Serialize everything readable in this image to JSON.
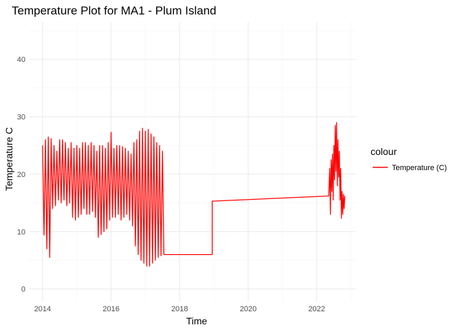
{
  "chart_data": {
    "type": "line",
    "title": "Temperature Plot for MA1 - Plum Island",
    "xlabel": "Time",
    "ylabel": "Temperature C",
    "xlim": [
      2013.6,
      2023.15
    ],
    "ylim": [
      -2.2,
      46.5
    ],
    "x_ticks": [
      2014,
      2016,
      2018,
      2020,
      2022
    ],
    "x_tick_labels": [
      "2014",
      "2016",
      "2018",
      "2020",
      "2022"
    ],
    "y_ticks": [
      0,
      10,
      20,
      30,
      40
    ],
    "y_tick_labels": [
      "0",
      "10",
      "20",
      "30",
      "40"
    ],
    "grid": true,
    "legend": {
      "title": "colour",
      "position": "right",
      "entries": [
        {
          "label": "Temperature (C)",
          "color": "#FF0000"
        }
      ]
    },
    "series": [
      {
        "name": "Temperature (C)",
        "color": "#FF0000",
        "cycle_period_years": 0.0833,
        "segments": [
          {
            "start": 2014.0,
            "description": "monthly oscillation envelope (peak, trough) per cycle",
            "cycles": [
              [
                25.0,
                9.4
              ],
              [
                26.0,
                7.0
              ],
              [
                26.5,
                5.5
              ],
              [
                26.2,
                14.0
              ],
              [
                25.0,
                14.5
              ],
              [
                24.0,
                15.5
              ],
              [
                26.0,
                15.0
              ],
              [
                26.0,
                15.5
              ],
              [
                25.5,
                14.5
              ],
              [
                24.5,
                15.0
              ],
              [
                25.5,
                12.5
              ],
              [
                24.5,
                12.0
              ],
              [
                25.0,
                12.5
              ],
              [
                24.5,
                13.0
              ],
              [
                25.5,
                14.0
              ],
              [
                25.5,
                13.0
              ],
              [
                25.0,
                13.0
              ],
              [
                25.5,
                13.5
              ],
              [
                25.0,
                12.5
              ],
              [
                24.0,
                9.0
              ],
              [
                25.0,
                9.5
              ],
              [
                25.0,
                10.0
              ],
              [
                24.5,
                10.5
              ],
              [
                25.5,
                12.0
              ],
              [
                27.3,
                12.5
              ],
              [
                24.5,
                12.5
              ],
              [
                25.0,
                13.0
              ],
              [
                25.0,
                12.0
              ],
              [
                24.8,
                12.5
              ],
              [
                24.5,
                13.0
              ],
              [
                24.0,
                12.0
              ],
              [
                23.5,
                11.0
              ],
              [
                25.5,
                7.5
              ],
              [
                26.0,
                6.0
              ],
              [
                27.5,
                5.0
              ],
              [
                28.0,
                4.5
              ],
              [
                27.5,
                4.0
              ],
              [
                27.8,
                4.0
              ],
              [
                27.0,
                4.5
              ],
              [
                26.5,
                5.0
              ],
              [
                25.5,
                5.5
              ],
              [
                25.0,
                5.8
              ],
              [
                24.0,
                6.0
              ]
            ],
            "end": [
              2018.95,
              6.0
            ]
          },
          {
            "x": [
              2018.95,
              2022.35
            ],
            "y": [
              15.3,
              16.2
            ]
          },
          {
            "x": [
              2022.35,
              2022.38,
              2022.4,
              2022.42,
              2022.44,
              2022.46,
              2022.48,
              2022.5,
              2022.52,
              2022.54,
              2022.56,
              2022.58,
              2022.6,
              2022.62,
              2022.64,
              2022.66,
              2022.68,
              2022.7,
              2022.72,
              2022.74,
              2022.76,
              2022.78,
              2022.8,
              2022.82
            ],
            "y": [
              16.2,
              21.0,
              13.0,
              22.5,
              17.0,
              23.5,
              15.5,
              25.0,
              19.0,
              28.5,
              20.5,
              29.0,
              18.0,
              26.0,
              19.5,
              24.0,
              15.5,
              21.0,
              12.3,
              17.0,
              13.0,
              16.5,
              14.0,
              16.2
            ]
          }
        ]
      }
    ]
  }
}
